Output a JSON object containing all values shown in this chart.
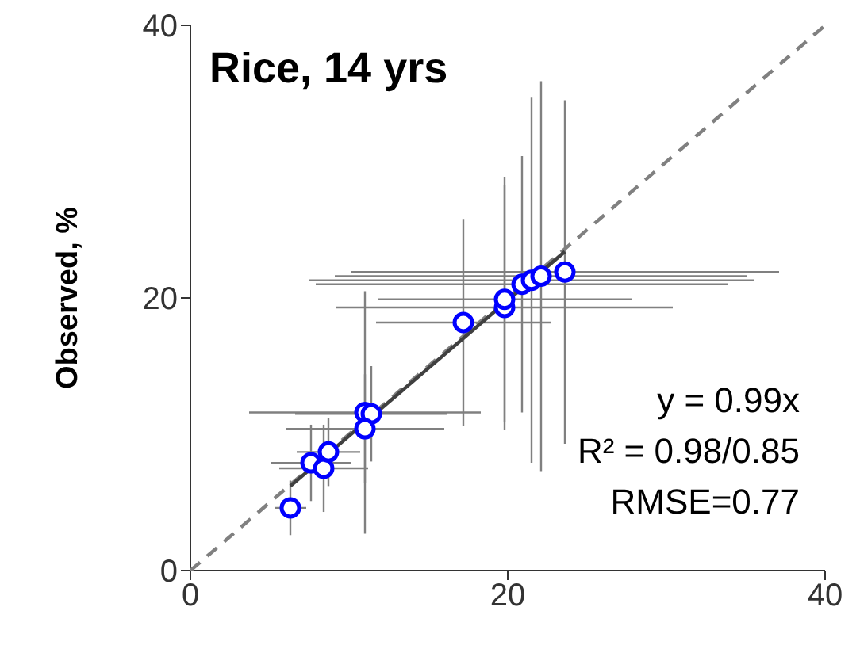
{
  "chart_data": {
    "type": "scatter",
    "title": "Rice, 14 yrs",
    "ylabel": "Observed, %",
    "annotations": [
      "y = 0.99x",
      "R² = 0.98/0.85",
      "RMSE=0.77"
    ],
    "xlim": [
      0,
      40
    ],
    "xticks": [
      0,
      20,
      40
    ],
    "ylim": [
      0,
      40
    ],
    "yticks": [
      0,
      20,
      40
    ],
    "grid": false,
    "legend": false,
    "series": [
      {
        "type": "line",
        "x": [
          0,
          40
        ],
        "values": [
          0,
          40
        ],
        "color": "#808080",
        "line_style": "dashed",
        "marker": "none"
      },
      {
        "type": "line",
        "x": [
          6.3,
          23.6
        ],
        "values": [
          6.2,
          23.4
        ],
        "color": "#404040",
        "line_style": "solid",
        "marker": "none"
      },
      {
        "color": "#0000ff",
        "marker": "circle",
        "x": [
          6.3,
          7.6,
          8.4,
          8.7,
          11.0,
          11.4,
          11.0,
          17.2,
          19.8,
          19.8,
          20.9,
          21.5,
          22.1,
          23.6
        ],
        "values": [
          4.6,
          7.9,
          7.5,
          8.7,
          11.6,
          11.5,
          10.4,
          18.2,
          19.3,
          19.9,
          21.0,
          21.3,
          21.6,
          21.9
        ],
        "xerrors": [
          1,
          2.5,
          2.8,
          2,
          7.3,
          4.8,
          5,
          5.5,
          10.6,
          8,
          13,
          14,
          13,
          13.5
        ],
        "errors": [
          2,
          2.8,
          3.2,
          2.5,
          8.9,
          3.5,
          4,
          7.6,
          9,
          9,
          9.4,
          13.4,
          14.3,
          12.6
        ]
      }
    ]
  }
}
